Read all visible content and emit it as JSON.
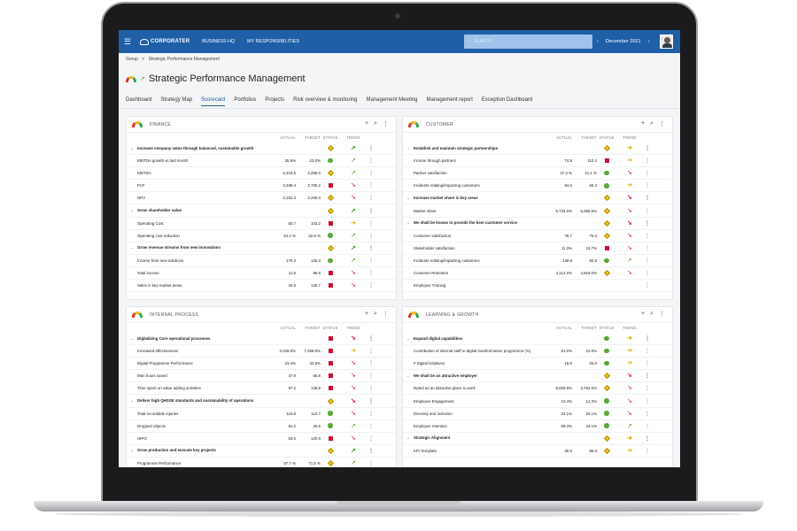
{
  "topbar": {
    "brand": "CORPORATER",
    "nav": [
      "BUSINESS HQ",
      "MY RESPONSIBILITIES"
    ],
    "search_placeholder": "SEARCH",
    "period": "December 2021",
    "prev": "‹",
    "next": "›"
  },
  "breadcrumb": {
    "root": "Group",
    "sep": ">",
    "current": "Strategic Performance Management"
  },
  "page_title": "Strategic Performance Management",
  "tabs": [
    "Dashboard",
    "Strategy Map",
    "Scorecard",
    "Portfolios",
    "Projects",
    "Risk overview & monitoring",
    "Management Meeting",
    "Management report",
    "Exception Dashboard"
  ],
  "active_tab": "Scorecard",
  "columns": {
    "actual": "ACTUAL",
    "target": "TARGET",
    "status": "STATUS",
    "trend": "TREND"
  },
  "colors": {
    "red": "#c8102e",
    "green": "#5aa83a",
    "yellow": "#f5c518",
    "brand": "#1f5fa8"
  },
  "panels": [
    {
      "title": "FINANCE",
      "rows": [
        {
          "group": true,
          "name": "Increase company value through balanced, sustainable growth",
          "actual": "",
          "target": "",
          "status": "yellow",
          "trend": "up"
        },
        {
          "name": "EBITDA growth vs last month",
          "actual": "35.9%",
          "target": "23.0%",
          "status": "green",
          "trend": "up"
        },
        {
          "name": "EBITDA",
          "actual": "2,418.5",
          "target": "2,295.0",
          "status": "yellow",
          "trend": "up"
        },
        {
          "name": "FCF",
          "actual": "3,499.4",
          "target": "3,790.2",
          "status": "red",
          "trend": "down"
        },
        {
          "name": "NPV",
          "actual": "3,152.3",
          "target": "3,256.0",
          "status": "yellow",
          "trend": "down"
        },
        {
          "group": true,
          "name": "Grow shareholder value",
          "actual": "",
          "target": "",
          "status": "yellow",
          "trend": "up"
        },
        {
          "name": "Operating Cost",
          "actual": "50.7",
          "target": "103.2",
          "status": "red",
          "trend": "right"
        },
        {
          "name": "Operating cost reduction",
          "actual": "54.2 %",
          "target": "22.8 %",
          "status": "green",
          "trend": "up"
        },
        {
          "group": true,
          "name": "Grow revenue streams from new innovations",
          "actual": "",
          "target": "",
          "status": "yellow",
          "trend": "up"
        },
        {
          "name": "Income from new solutions",
          "actual": "179.3",
          "target": "125.3",
          "status": "green",
          "trend": "up"
        },
        {
          "name": "Total income",
          "actual": "11.9",
          "target": "99.6",
          "status": "red",
          "trend": "down"
        },
        {
          "name": "Sales in key market areas",
          "actual": "34.9",
          "target": "140.7",
          "status": "red",
          "trend": "down"
        }
      ]
    },
    {
      "title": "CUSTOMER",
      "rows": [
        {
          "group": true,
          "name": "Establish and maintain strategic partnerships",
          "actual": "",
          "target": "",
          "status": "yellow",
          "trend": "right"
        },
        {
          "name": "Income through partners",
          "actual": "74.8",
          "target": "110.4",
          "status": "red",
          "trend": "right"
        },
        {
          "name": "Partner satisfaction",
          "actual": "37.3 %",
          "target": "21.1 %",
          "status": "green",
          "trend": "down"
        },
        {
          "name": "Incidents relating/impacting customers",
          "actual": "84.5",
          "target": "68.3",
          "status": "green",
          "trend": "right"
        },
        {
          "group": true,
          "name": "Increase market share in key areas",
          "actual": "",
          "target": "",
          "status": "yellow",
          "trend": "down"
        },
        {
          "name": "Market share",
          "actual": "5,733.0%",
          "target": "5,996.5%",
          "status": "yellow",
          "trend": "down"
        },
        {
          "group": true,
          "name": "We shall be known to provide the best customer service",
          "actual": "",
          "target": "",
          "status": "yellow",
          "trend": "down"
        },
        {
          "name": "Customer satisfaction",
          "actual": "78.7",
          "target": "75.3",
          "status": "yellow",
          "trend": "down"
        },
        {
          "name": "Stakeholder satisfaction",
          "actual": "11.3%",
          "target": "15.7%",
          "status": "red",
          "trend": "down"
        },
        {
          "name": "Incidents relating/impacting customers",
          "actual": "139.8",
          "target": "82.8",
          "status": "green",
          "trend": "up"
        },
        {
          "name": "Customer Retention",
          "actual": "4,114.0%",
          "target": "4,919.0%",
          "status": "yellow",
          "trend": "down"
        },
        {
          "name": "Employee Training",
          "actual": "",
          "target": "",
          "status": "",
          "trend": ""
        }
      ]
    },
    {
      "title": "INTERNAL PROCESS",
      "rows": [
        {
          "group": true,
          "name": "Digitalizing Core operational processes",
          "actual": "",
          "target": "",
          "status": "red",
          "trend": "down"
        },
        {
          "name": "Increased effectiveness",
          "actual": "3,348.5%",
          "target": "7,268.0%",
          "status": "red",
          "trend": "right"
        },
        {
          "name": "Digital Programme Performance",
          "actual": "23.4%",
          "target": "33.8%",
          "status": "red",
          "trend": "down"
        },
        {
          "name": "Man hours saved",
          "actual": "47.9",
          "target": "65.8",
          "status": "red",
          "trend": "down"
        },
        {
          "name": "Time spent on value adding activities",
          "actual": "97.2",
          "target": "128.8",
          "status": "red",
          "trend": "down"
        },
        {
          "group": true,
          "name": "Deliver high QHSSE standards and sustainability of operations",
          "actual": "",
          "target": "",
          "status": "yellow",
          "trend": "down"
        },
        {
          "name": "Total recordable injuries",
          "actual": "119.8",
          "target": "116.7",
          "status": "green",
          "trend": "down"
        },
        {
          "name": "Dropped objects",
          "actual": "81.2",
          "target": "25.5",
          "status": "green",
          "trend": "up"
        },
        {
          "name": "HIPO",
          "actual": "53.5",
          "target": "120.6",
          "status": "red",
          "trend": "down"
        },
        {
          "group": true,
          "name": "Grow production and execute key projects",
          "actual": "",
          "target": "",
          "status": "yellow",
          "trend": "up"
        },
        {
          "name": "Programme Performance",
          "actual": "87.7 %",
          "target": "71.5 %",
          "status": "yellow",
          "trend": "up"
        }
      ]
    },
    {
      "title": "LEARNING & GROWTH",
      "rows": [
        {
          "group": true,
          "name": "Expand digital capabilities",
          "actual": "",
          "target": "",
          "status": "green",
          "trend": "right"
        },
        {
          "name": "Contribution of internal staff to digital transformation programme (%)",
          "actual": "81.0%",
          "target": "22.5%",
          "status": "green",
          "trend": "right"
        },
        {
          "name": "# Digital initiatives",
          "actual": "18.0",
          "target": "25.0",
          "status": "green",
          "trend": "right"
        },
        {
          "group": true,
          "name": "We shall be an attractive employer",
          "actual": "",
          "target": "",
          "status": "yellow",
          "trend": "down"
        },
        {
          "name": "Rated as an attractive place to work",
          "actual": "8,029.5%",
          "target": "3,782.5%",
          "status": "yellow",
          "trend": "down"
        },
        {
          "name": "Employee Engagement",
          "actual": "10.4%",
          "target": "12.3%",
          "status": "green",
          "trend": "down"
        },
        {
          "name": "Diversity and inclusion",
          "actual": "24.1%",
          "target": "26.1%",
          "status": "green",
          "trend": "down"
        },
        {
          "name": "Employee retention",
          "actual": "59.4%",
          "target": "43.1%",
          "status": "green",
          "trend": "up"
        },
        {
          "group": true,
          "name": "Strategic Alignment",
          "actual": "",
          "target": "",
          "status": "yellow",
          "trend": "right"
        },
        {
          "name": "KPI Template",
          "actual": "30.9",
          "target": "99.9",
          "status": "yellow",
          "trend": "right"
        }
      ]
    }
  ]
}
